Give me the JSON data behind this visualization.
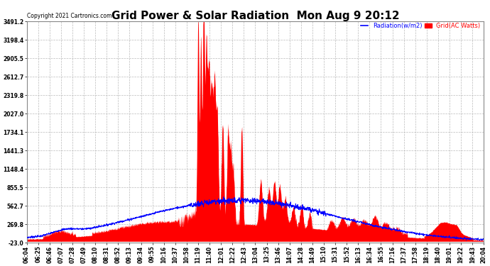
{
  "title": "Grid Power & Solar Radiation  Mon Aug 9 20:12",
  "copyright": "Copyright 2021 Cartronics.com",
  "legend_radiation": "Radiation(w/m2)",
  "legend_grid": "Grid(AC Watts)",
  "ymin": -23.0,
  "ymax": 3491.2,
  "yticks": [
    -23.0,
    269.8,
    562.7,
    855.5,
    1148.4,
    1441.3,
    1734.1,
    2027.0,
    2319.8,
    2612.7,
    2905.5,
    3198.4,
    3491.2
  ],
  "background_color": "#ffffff",
  "plot_bg_color": "#ffffff",
  "grid_color": "#bbbbbb",
  "radiation_color": "#0000ff",
  "grid_ac_color": "#ff0000",
  "title_fontsize": 11,
  "tick_label_fontsize": 5.5,
  "xtick_labels": [
    "06:04",
    "06:25",
    "06:46",
    "07:07",
    "07:28",
    "07:49",
    "08:10",
    "08:31",
    "08:52",
    "09:13",
    "09:34",
    "09:55",
    "10:16",
    "10:37",
    "10:58",
    "11:19",
    "11:40",
    "12:01",
    "12:22",
    "12:43",
    "13:04",
    "13:25",
    "13:46",
    "14:07",
    "14:28",
    "14:49",
    "15:10",
    "15:31",
    "15:52",
    "16:13",
    "16:34",
    "16:55",
    "17:16",
    "17:37",
    "17:58",
    "18:19",
    "18:40",
    "19:01",
    "19:22",
    "19:43",
    "20:04"
  ]
}
